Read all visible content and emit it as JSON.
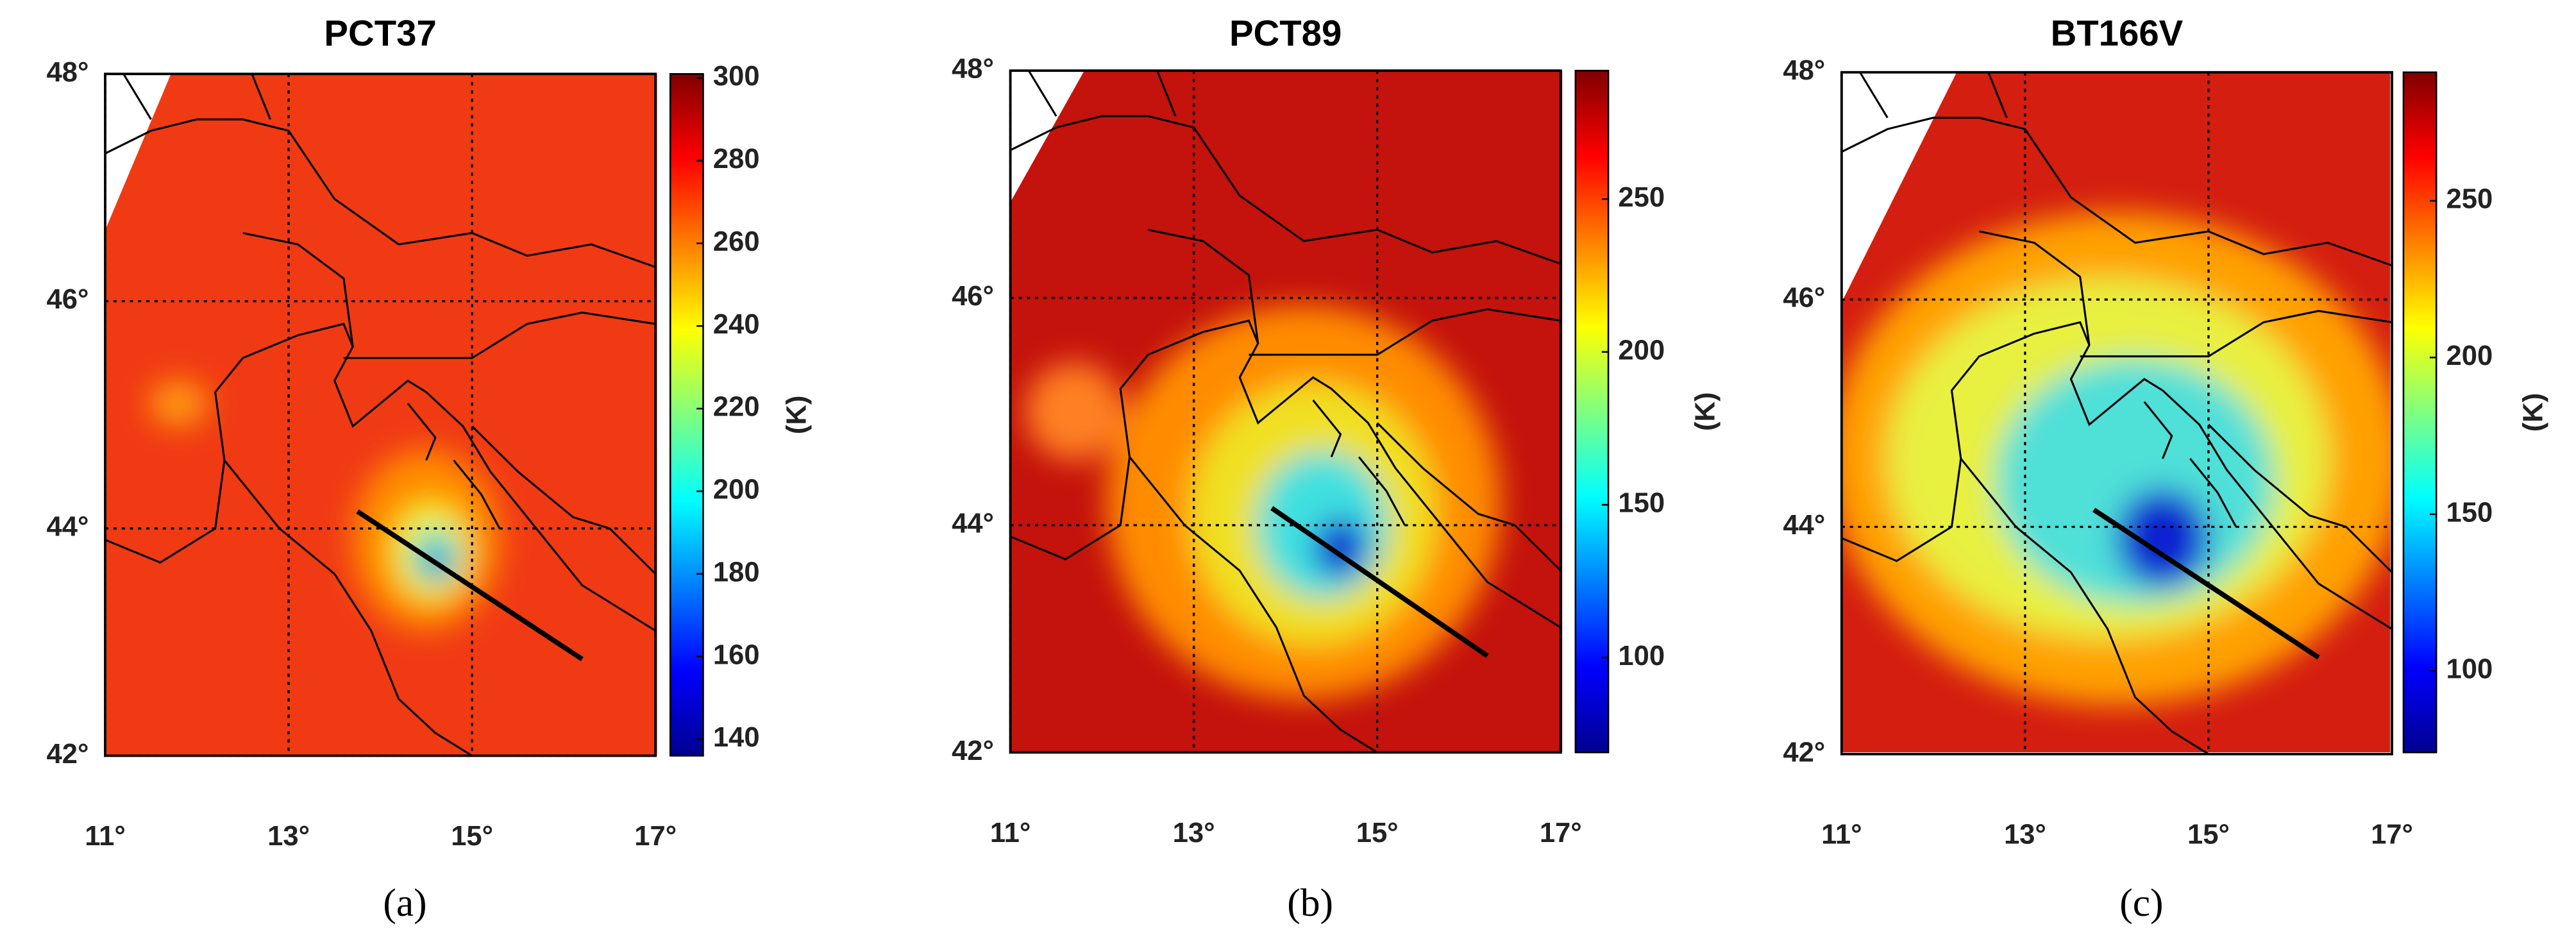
{
  "chart_data": [
    {
      "type": "heatmap",
      "title": "PCT37",
      "caption": "(a)",
      "colormap": "jet",
      "grid": true,
      "xlim": [
        11,
        17
      ],
      "xticks": [
        {
          "value": 11,
          "label": "11°"
        },
        {
          "value": 13,
          "label": "13°"
        },
        {
          "value": 15,
          "label": "15°"
        },
        {
          "value": 17,
          "label": "17°"
        }
      ],
      "ylim": [
        42,
        48
      ],
      "yticks": [
        {
          "value": 42,
          "label": "42°"
        },
        {
          "value": 44,
          "label": "44°"
        },
        {
          "value": 46,
          "label": "46°"
        },
        {
          "value": 48,
          "label": "48°"
        }
      ],
      "colorbar": {
        "label": "(K)",
        "lim": [
          136,
          301
        ],
        "ticks": [
          300,
          280,
          260,
          240,
          220,
          200,
          180,
          160,
          140
        ]
      }
    },
    {
      "type": "heatmap",
      "title": "PCT89",
      "caption": "(b)",
      "colormap": "jet",
      "grid": true,
      "xlim": [
        11,
        17
      ],
      "xticks": [
        {
          "value": 11,
          "label": "11°"
        },
        {
          "value": 13,
          "label": "13°"
        },
        {
          "value": 15,
          "label": "15°"
        },
        {
          "value": 17,
          "label": "17°"
        }
      ],
      "ylim": [
        42,
        48
      ],
      "yticks": [
        {
          "value": 42,
          "label": "42°"
        },
        {
          "value": 44,
          "label": "44°"
        },
        {
          "value": 46,
          "label": "46°"
        },
        {
          "value": 48,
          "label": "48°"
        }
      ],
      "colorbar": {
        "label": "(K)",
        "lim": [
          69,
          292
        ],
        "ticks": [
          250,
          200,
          150,
          100
        ]
      }
    },
    {
      "type": "heatmap",
      "title": "BT166V",
      "caption": "(c)",
      "colormap": "jet",
      "grid": true,
      "xlim": [
        11,
        17
      ],
      "xticks": [
        {
          "value": 11,
          "label": "11°"
        },
        {
          "value": 13,
          "label": "13°"
        },
        {
          "value": 15,
          "label": "15°"
        },
        {
          "value": 17,
          "label": "17°"
        }
      ],
      "ylim": [
        42,
        48
      ],
      "yticks": [
        {
          "value": 42,
          "label": "42°"
        },
        {
          "value": 44,
          "label": "44°"
        },
        {
          "value": 46,
          "label": "46°"
        },
        {
          "value": 48,
          "label": "48°"
        }
      ],
      "colorbar": {
        "label": "(K)",
        "lim": [
          74,
          291
        ],
        "ticks": [
          250,
          200,
          150,
          100
        ]
      }
    }
  ]
}
